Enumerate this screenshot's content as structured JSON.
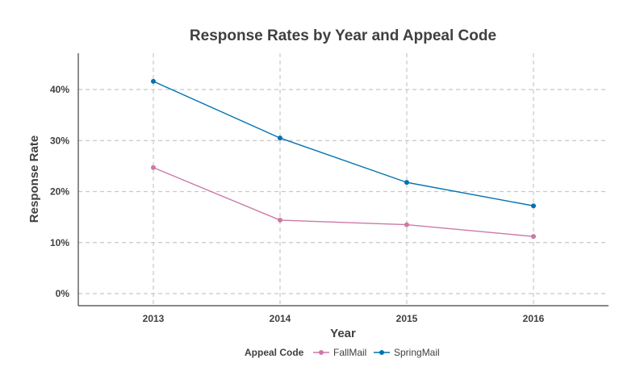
{
  "chart_data": {
    "type": "line",
    "title": "Response Rates by Year and Appeal Code",
    "xlabel": "Year",
    "ylabel": "Response Rate",
    "x": [
      "2013",
      "2014",
      "2015",
      "2016"
    ],
    "ylim": [
      -0.02,
      0.47
    ],
    "yticks": [
      0,
      0.1,
      0.2,
      0.3,
      0.4
    ],
    "ytick_labels": [
      "0%",
      "10%",
      "20%",
      "30%",
      "40%"
    ],
    "grid": true,
    "legend": {
      "title": "Appeal Code",
      "position": "bottom"
    },
    "series": [
      {
        "name": "FallMail",
        "color": "#cc79a7",
        "values": [
          0.247,
          0.144,
          0.135,
          0.112
        ]
      },
      {
        "name": "SpringMail",
        "color": "#0072b2",
        "values": [
          0.416,
          0.305,
          0.218,
          0.172
        ]
      }
    ]
  }
}
